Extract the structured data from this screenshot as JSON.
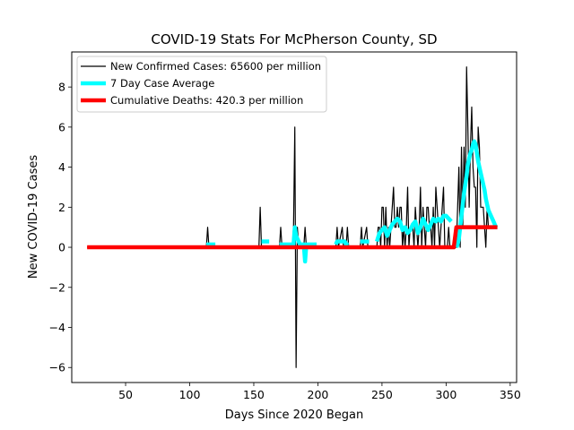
{
  "chart_data": {
    "type": "line",
    "title": "COVID-19 Stats For McPherson County, SD",
    "xlabel": "Days Since 2020 Began",
    "ylabel": "New COVID-19 Cases",
    "xlim": [
      8,
      355
    ],
    "ylim": [
      -6.75,
      9.75
    ],
    "xticks": [
      50,
      100,
      150,
      200,
      250,
      300,
      350
    ],
    "yticks": [
      -6,
      -4,
      -2,
      0,
      2,
      4,
      6,
      8
    ],
    "legend_position": "top-left",
    "grid": false,
    "series": [
      {
        "name": "New Confirmed Cases: 65600 per million",
        "color": "#000000",
        "style": "thin-line",
        "x": [
          20,
          113,
          114,
          115,
          116,
          154,
          155,
          156,
          157,
          158,
          170,
          171,
          172,
          180,
          181,
          182,
          183,
          184,
          185,
          186,
          189,
          190,
          191,
          192,
          193,
          194,
          195,
          214,
          215,
          216,
          219,
          220,
          222,
          223,
          224,
          233,
          234,
          235,
          238,
          239,
          240,
          246,
          247,
          248,
          249,
          250,
          251,
          252,
          253,
          254,
          255,
          256,
          257,
          258,
          259,
          260,
          261,
          262,
          263,
          264,
          265,
          266,
          267,
          268,
          269,
          270,
          271,
          272,
          273,
          274,
          275,
          276,
          277,
          278,
          279,
          280,
          281,
          282,
          283,
          284,
          285,
          286,
          287,
          288,
          289,
          290,
          291,
          292,
          293,
          294,
          295,
          296,
          297,
          298,
          299,
          300,
          301,
          302,
          303,
          304,
          305,
          306,
          307,
          308,
          309,
          310,
          311,
          312,
          313,
          314,
          315,
          316,
          317,
          318,
          319,
          320,
          321,
          322,
          323,
          324,
          325,
          326,
          327,
          328,
          329,
          330,
          331,
          332,
          333,
          334,
          335,
          336,
          337,
          338,
          339,
          340
        ],
        "values": [
          0,
          0,
          1,
          0,
          0,
          0,
          2,
          0,
          0,
          0,
          0,
          1,
          0,
          0,
          1,
          6,
          -6,
          1,
          0,
          0,
          0,
          1,
          0,
          0,
          0,
          0,
          0,
          0,
          1,
          0,
          1,
          0,
          0,
          1,
          0,
          0,
          1,
          0,
          1,
          0,
          0,
          0,
          1,
          1,
          0,
          2,
          2,
          0,
          2,
          0,
          1,
          0,
          1,
          2,
          3,
          1,
          1,
          2,
          1,
          2,
          2,
          0,
          1,
          0,
          1,
          3,
          0,
          1,
          1,
          1,
          0,
          2,
          1,
          0,
          1,
          3,
          0,
          2,
          1,
          0,
          2,
          2,
          1,
          1,
          0,
          2,
          0,
          3,
          2,
          1,
          0,
          1,
          2,
          3,
          0,
          0,
          0,
          1,
          0,
          0,
          0,
          0,
          0,
          0,
          2,
          4,
          0,
          5,
          1,
          5,
          2,
          9,
          6,
          2,
          5,
          7,
          4,
          3,
          3,
          0,
          6,
          5,
          2,
          2,
          2,
          1,
          0,
          2,
          1,
          1,
          1,
          1,
          1,
          1,
          1,
          1
        ],
        "line_width": 1.2
      },
      {
        "name": "7 Day Case Average",
        "color": "#00ffff",
        "style": "thick-line",
        "segments": [
          {
            "x": [
              113,
              114,
              115,
              116,
              117,
              118,
              119,
              120
            ],
            "values": [
              0.14,
              0.14,
              0.14,
              0.14,
              0.14,
              0.14,
              0.14,
              0.14
            ]
          },
          {
            "x": [
              156,
              157,
              158,
              159,
              160,
              161,
              162
            ],
            "values": [
              0.29,
              0.29,
              0.29,
              0.29,
              0.29,
              0.29,
              0.29
            ]
          },
          {
            "x": [
              170,
              171,
              172,
              173,
              174,
              175,
              176,
              177,
              178,
              179,
              180,
              181,
              182,
              183,
              184,
              185,
              186,
              187,
              188,
              189,
              190,
              191,
              192,
              193,
              194,
              195,
              196,
              197,
              198,
              199
            ],
            "values": [
              0.14,
              0.14,
              0.14,
              0.14,
              0.14,
              0.14,
              0.14,
              0.14,
              0.14,
              0.14,
              0.14,
              0.14,
              1.0,
              0.57,
              0.43,
              0.29,
              0.14,
              0.14,
              0.14,
              0.14,
              -0.71,
              0.14,
              0.14,
              0.14,
              0.14,
              0.14,
              0.14,
              0.14,
              0.14,
              0.14
            ]
          },
          {
            "x": [
              214,
              215,
              216,
              217,
              218,
              219,
              220,
              221,
              222,
              223,
              224
            ],
            "values": [
              0.14,
              0.29,
              0.29,
              0.29,
              0.29,
              0.29,
              0.29,
              0.29,
              0.14,
              0.14,
              0.14
            ]
          },
          {
            "x": [
              233,
              234,
              235,
              236,
              237,
              238,
              239,
              240
            ],
            "values": [
              0.29,
              0.29,
              0.29,
              0.29,
              0.29,
              0.29,
              0.29,
              0.29
            ]
          },
          {
            "x": [
              246,
              248,
              250,
              252,
              254,
              256,
              258,
              260,
              262,
              264,
              266,
              268,
              270,
              272,
              274,
              276,
              278,
              280,
              282,
              284,
              286,
              288,
              290,
              292,
              294,
              296,
              298,
              300,
              302,
              304
            ],
            "values": [
              0.29,
              0.71,
              0.86,
              1.0,
              0.57,
              0.86,
              1.14,
              1.29,
              1.43,
              1.29,
              0.86,
              1.0,
              0.71,
              0.86,
              1.14,
              1.29,
              0.71,
              1.0,
              1.43,
              1.14,
              0.86,
              1.14,
              1.43,
              1.29,
              1.43,
              1.29,
              1.57,
              1.57,
              1.43,
              1.29
            ]
          },
          {
            "x": [
              308,
              309,
              310,
              311,
              312,
              313,
              314,
              315,
              316,
              317,
              318,
              319,
              320,
              321,
              322,
              323,
              324,
              325,
              326,
              327,
              328,
              329,
              330,
              331,
              332,
              333,
              334,
              335,
              336,
              337,
              338,
              339,
              340
            ],
            "values": [
              0.0,
              0.14,
              0.43,
              1.0,
              1.57,
              2.14,
              2.71,
              3.14,
              3.57,
              4.14,
              4.43,
              4.71,
              4.86,
              5.14,
              5.29,
              5.14,
              4.71,
              4.29,
              4.0,
              3.71,
              3.43,
              3.14,
              2.86,
              2.43,
              2.14,
              1.86,
              1.71,
              1.57,
              1.43,
              1.29,
              1.14,
              1.0,
              1.0
            ]
          }
        ],
        "line_width": 4.5
      },
      {
        "name": "Cumulative Deaths: 420.3 per million",
        "color": "#ff0000",
        "style": "thick-line",
        "x": [
          20,
          306,
          307,
          308,
          340
        ],
        "values": [
          0,
          0,
          0.5,
          1,
          1
        ],
        "line_width": 4.5
      }
    ]
  }
}
